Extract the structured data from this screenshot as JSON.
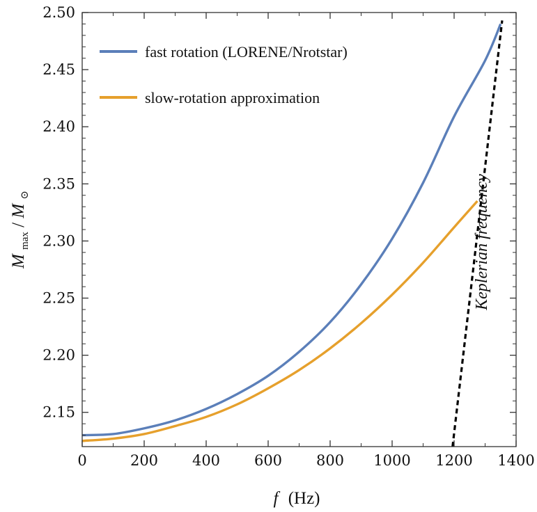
{
  "chart_data": {
    "type": "line",
    "title": "",
    "xlabel_var": "f",
    "xlabel_unit": "(Hz)",
    "ylabel_main": "M",
    "ylabel_sub": "max",
    "ylabel_sep": "/",
    "ylabel_den_main": "M",
    "ylabel_den_sub": "⊙",
    "xlim": [
      0,
      1400
    ],
    "ylim": [
      2.12,
      2.5
    ],
    "x_ticks": [
      0,
      200,
      400,
      600,
      800,
      1000,
      1200,
      1400
    ],
    "x_tick_labels": [
      "0",
      "200",
      "400",
      "600",
      "800",
      "1000",
      "1200",
      "1400"
    ],
    "y_ticks": [
      2.15,
      2.2,
      2.25,
      2.3,
      2.35,
      2.4,
      2.45,
      2.5
    ],
    "y_tick_labels": [
      "2.15",
      "2.20",
      "2.25",
      "2.30",
      "2.35",
      "2.40",
      "2.45",
      "2.50"
    ],
    "grid": false,
    "legend_position": "top-left",
    "series": [
      {
        "name": "fast rotation (LORENE/Nrotstar)",
        "color": "#5b7fb9",
        "x": [
          0,
          100,
          200,
          300,
          400,
          500,
          600,
          700,
          800,
          900,
          1000,
          1100,
          1200,
          1300,
          1350
        ],
        "y": [
          2.13,
          2.131,
          2.136,
          2.143,
          2.153,
          2.166,
          2.182,
          2.203,
          2.229,
          2.262,
          2.302,
          2.351,
          2.409,
          2.458,
          2.49
        ]
      },
      {
        "name": "slow-rotation approximation",
        "color": "#e6a02c",
        "x": [
          0,
          100,
          200,
          300,
          400,
          500,
          600,
          700,
          800,
          900,
          1000,
          1100,
          1200,
          1275
        ],
        "y": [
          2.125,
          2.127,
          2.131,
          2.138,
          2.146,
          2.157,
          2.171,
          2.187,
          2.206,
          2.228,
          2.253,
          2.281,
          2.312,
          2.335
        ]
      },
      {
        "name": "Keplerian frequency",
        "color": "#000000",
        "style": "dashed",
        "x": [
          1195,
          1355
        ],
        "y": [
          2.12,
          2.493
        ]
      }
    ],
    "annotations": [
      {
        "text": "Keplerian frequency",
        "x": 1305,
        "y": 2.3,
        "rotation": -90
      }
    ]
  }
}
